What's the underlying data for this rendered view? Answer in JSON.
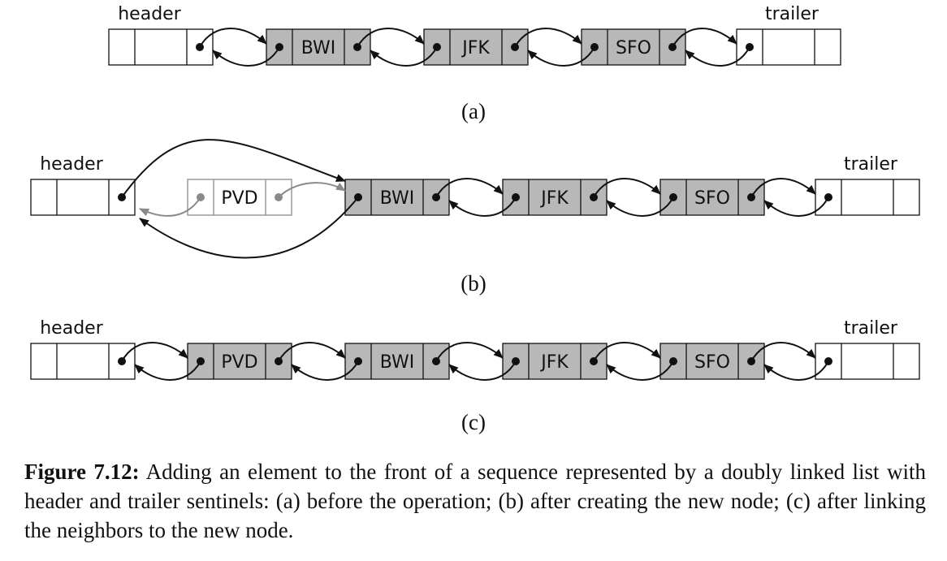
{
  "panels": [
    {
      "label": "(a)",
      "header_label": "header",
      "trailer_label": "trailer",
      "nodes": [
        "BWI",
        "JFK",
        "SFO"
      ],
      "pending_node": null
    },
    {
      "label": "(b)",
      "header_label": "header",
      "trailer_label": "trailer",
      "nodes": [
        "BWI",
        "JFK",
        "SFO"
      ],
      "pending_node": "PVD"
    },
    {
      "label": "(c)",
      "header_label": "header",
      "trailer_label": "trailer",
      "nodes": [
        "PVD",
        "BWI",
        "JFK",
        "SFO"
      ],
      "pending_node": null
    }
  ],
  "caption": {
    "title": "Figure 7.12:",
    "text": "Adding an element to the front of a sequence represented by a doubly linked list with header and trailer sentinels: (a) before the operation; (b) after creating the new node; (c) after linking the neighbors to the new node."
  },
  "colors": {
    "node_fill": "#b8b8b8",
    "sentinel_fill": "#ffffff",
    "line": "#111111",
    "pending": "#8a8a8a"
  }
}
